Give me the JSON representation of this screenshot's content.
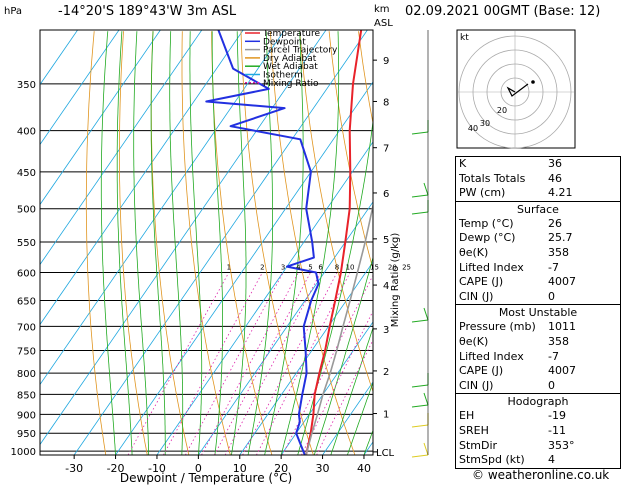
{
  "header": {
    "location": "-14°20'S  189°43'W  3m  ASL",
    "datetime": "02.09.2021  00GMT  (Base: 12)",
    "pressure_unit": "hPa",
    "km_label_line1": "km",
    "km_label_line2": "ASL"
  },
  "chart_data": {
    "type": "line",
    "xlabel": "Dewpoint / Temperature (°C)",
    "ylabel": "hPa",
    "mixing_ratio_label": "Mixing Ratio (g/kg)",
    "x_ticks": [
      -30,
      -20,
      -10,
      0,
      10,
      20,
      30,
      40
    ],
    "pressure_levels": [
      300,
      350,
      400,
      450,
      500,
      550,
      600,
      650,
      700,
      750,
      800,
      850,
      900,
      950,
      1000
    ],
    "km_ticks": [
      {
        "label": "9",
        "p": 327
      },
      {
        "label": "8",
        "p": 368
      },
      {
        "label": "7",
        "p": 420
      },
      {
        "label": "6",
        "p": 478
      },
      {
        "label": "5",
        "p": 545
      },
      {
        "label": "4",
        "p": 622
      },
      {
        "label": "3",
        "p": 705
      },
      {
        "label": "2",
        "p": 795
      },
      {
        "label": "1",
        "p": 898
      },
      {
        "label": "LCL",
        "p": 1002
      }
    ],
    "mixing_ratio_values": [
      "1",
      "2",
      "3",
      "4",
      "5",
      "6",
      "8",
      "10",
      "15",
      "20",
      "25"
    ],
    "legend": [
      {
        "name": "Temperature",
        "color": "#e8222a"
      },
      {
        "name": "Dewpoint",
        "color": "#2230e0"
      },
      {
        "name": "Parcel Trajectory",
        "color": "#999999"
      },
      {
        "name": "Dry Adiabat",
        "color": "#e09520"
      },
      {
        "name": "Wet Adiabat",
        "color": "#22aa22"
      },
      {
        "name": "Isotherm",
        "color": "#20a8e0"
      },
      {
        "name": "Mixing Ratio",
        "color": "#dd22aa"
      }
    ],
    "series": [
      {
        "name": "Temperature",
        "points": [
          [
            1011,
            26
          ],
          [
            980,
            24.8
          ],
          [
            950,
            23.5
          ],
          [
            900,
            21.0
          ],
          [
            850,
            18.0
          ],
          [
            800,
            15.6
          ],
          [
            750,
            13.2
          ],
          [
            700,
            10.3
          ],
          [
            650,
            7.3
          ],
          [
            600,
            4.0
          ],
          [
            550,
            0.0
          ],
          [
            500,
            -4.5
          ],
          [
            450,
            -10.5
          ],
          [
            400,
            -17.5
          ],
          [
            350,
            -24.5
          ],
          [
            300,
            -31.5
          ]
        ]
      },
      {
        "name": "Dewpoint",
        "points": [
          [
            1011,
            25.7
          ],
          [
            950,
            20.0
          ],
          [
            920,
            19.0
          ],
          [
            900,
            17.5
          ],
          [
            850,
            15.0
          ],
          [
            800,
            12.5
          ],
          [
            750,
            8.5
          ],
          [
            700,
            4.0
          ],
          [
            650,
            1.5
          ],
          [
            620,
            0.5
          ],
          [
            600,
            -2.0
          ],
          [
            590,
            -10.0
          ],
          [
            575,
            -5.0
          ],
          [
            550,
            -8.0
          ],
          [
            500,
            -15.0
          ],
          [
            450,
            -20.0
          ],
          [
            410,
            -28.0
          ],
          [
            395,
            -47.0
          ],
          [
            375,
            -37.0
          ],
          [
            368,
            -57.0
          ],
          [
            355,
            -44.0
          ],
          [
            335,
            -56.0
          ],
          [
            300,
            -66.0
          ]
        ]
      },
      {
        "name": "Parcel Trajectory",
        "points": [
          [
            1011,
            26
          ],
          [
            950,
            23.8
          ],
          [
            900,
            22.0
          ],
          [
            850,
            20.0
          ],
          [
            800,
            18.2
          ],
          [
            750,
            16.0
          ],
          [
            700,
            13.5
          ],
          [
            650,
            10.9
          ],
          [
            600,
            8.0
          ],
          [
            550,
            4.8
          ],
          [
            500,
            1.0
          ],
          [
            450,
            -3.3
          ],
          [
            400,
            -8.6
          ],
          [
            350,
            -15.5
          ],
          [
            300,
            -24.0
          ]
        ]
      }
    ],
    "indices": {
      "K": "36",
      "Totals Totals": "46",
      "PW (cm)": "4.21"
    },
    "surface": {
      "Temp (°C)": "26",
      "Dewp (°C)": "25.7",
      "theta_e (K)": "358",
      "Lifted Index": "-7",
      "CAPE (J)": "4007",
      "CIN (J)": "0"
    },
    "most_unstable": {
      "Pressure (mb)": "1011",
      "theta_e (K)": "358",
      "Lifted Index": "-7",
      "CAPE (J)": "4007",
      "CIN (J)": "0"
    },
    "hodograph": {
      "EH": "-19",
      "SREH": "-11",
      "StmDir": "353°",
      "StmSpd (kt)": "4",
      "rings": [
        "10",
        "20",
        "30",
        "40"
      ],
      "unit": "kt"
    }
  },
  "panel": {
    "row_labels": {
      "k": "K",
      "tt": "Totals Totals",
      "pw": "PW (cm)",
      "surface_title": "Surface",
      "temp": "Temp (°C)",
      "dewp": "Dewp (°C)",
      "theta": "θe(K)",
      "li": "Lifted Index",
      "cape": "CAPE (J)",
      "cin": "CIN (J)",
      "mu_title": "Most Unstable",
      "pres": "Pressure (mb)",
      "hodo_title": "Hodograph",
      "eh": "EH",
      "sreh": "SREH",
      "stmdir": "StmDir",
      "stmspd": "StmSpd (kt)"
    },
    "values": {
      "k": "36",
      "tt": "46",
      "pw": "4.21",
      "temp": "26",
      "dewp": "25.7",
      "s_theta": "358",
      "s_li": "-7",
      "s_cape": "4007",
      "s_cin": "0",
      "pres": "1011",
      "m_theta": "358",
      "m_li": "-7",
      "m_cape": "4007",
      "m_cin": "0",
      "eh": "-19",
      "sreh": "-11",
      "stmdir": "353°",
      "stmspd": "4"
    }
  },
  "copyright": "© weatheronline.co.uk"
}
